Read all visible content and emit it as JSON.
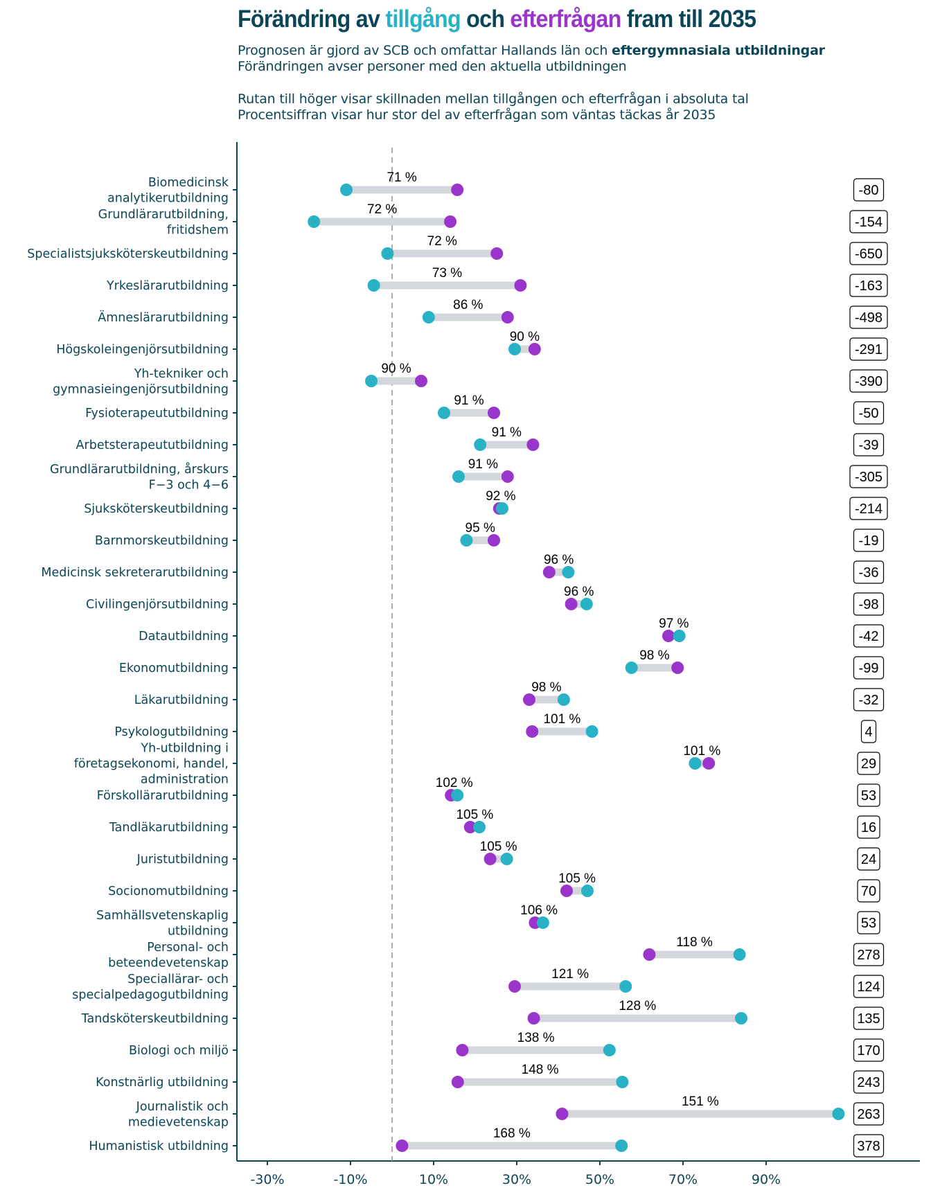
{
  "header": {
    "title_parts": [
      {
        "text": "Förändring av ",
        "role": "plain"
      },
      {
        "text": "tillgång",
        "role": "supply"
      },
      {
        "text": " och ",
        "role": "plain"
      },
      {
        "text": "efterfrågan",
        "role": "demand"
      },
      {
        "text": " fram till 2035",
        "role": "plain"
      }
    ],
    "subtitle_line1_plain": "Prognosen är gjord av SCB och omfattar Hallands län och ",
    "subtitle_line1_bold": "eftergymnasiala utbildningar",
    "subtitle_line2": "Förändringen avser personer med den aktuella utbildningen",
    "subtitle_line3": "Rutan till höger visar skillnaden mellan tillgången och efterfrågan i absoluta tal",
    "subtitle_line4": "Procentsiffran visar hur stor del av efterfrågan som väntas täckas år 2035"
  },
  "colors": {
    "title": "#0b4558",
    "supply": "#29b2c6",
    "demand": "#9a35cc",
    "segment": "#d4d7db",
    "axis": "#0b4558",
    "reference_line": "#999999"
  },
  "chart_data": {
    "type": "dumbbell",
    "title": "Förändring av tillgång och efterfrågan fram till 2035",
    "xlabel": "",
    "ylabel": "",
    "xlim": [
      -34,
      128
    ],
    "x_ticks": [
      -30,
      -10,
      10,
      30,
      50,
      70,
      90
    ],
    "x_tick_labels": [
      "-30%",
      "-10%",
      "10%",
      "30%",
      "50%",
      "70%",
      "90%"
    ],
    "reference_line": 0,
    "grid": false,
    "series_names": {
      "supply": "tillgång",
      "demand": "efterfrågan"
    },
    "rows": [
      {
        "label": [
          "Biomedicinsk",
          "analytikerutbildning"
        ],
        "supply": -11,
        "demand": 15.7,
        "coverage": "71 %",
        "diff": "-80"
      },
      {
        "label": [
          "Grundlärarutbildning,",
          "fritidshem"
        ],
        "supply": -18.8,
        "demand": 14,
        "coverage": "72 %",
        "diff": "-154"
      },
      {
        "label": [
          "Specialistsjuksköterskeutbildning"
        ],
        "supply": -1.1,
        "demand": 25.2,
        "coverage": "72 %",
        "diff": "-650"
      },
      {
        "label": [
          "Yrkeslärarutbildning"
        ],
        "supply": -4.4,
        "demand": 30.9,
        "coverage": "73 %",
        "diff": "-163"
      },
      {
        "label": [
          "Ämneslärarutbildning"
        ],
        "supply": 8.8,
        "demand": 27.8,
        "coverage": "86 %",
        "diff": "-498"
      },
      {
        "label": [
          "Högskoleingenjörsutbildning"
        ],
        "supply": 29.5,
        "demand": 34.3,
        "coverage": "90 %",
        "diff": "-291"
      },
      {
        "label": [
          "Yh-tekniker och",
          "gymnasieingenjörsutbildning"
        ],
        "supply": -5,
        "demand": 7,
        "coverage": "90 %",
        "diff": "-390"
      },
      {
        "label": [
          "Fysioterapeututbildning"
        ],
        "supply": 12.5,
        "demand": 24.5,
        "coverage": "91 %",
        "diff": "-50"
      },
      {
        "label": [
          "Arbetsterapeututbildning"
        ],
        "supply": 21.2,
        "demand": 33.9,
        "coverage": "91 %",
        "diff": "-39"
      },
      {
        "label": [
          "Grundlärarutbildning, årskurs",
          "F−3 och 4−6"
        ],
        "supply": 16,
        "demand": 27.8,
        "coverage": "91 %",
        "diff": "-305"
      },
      {
        "label": [
          "Sjuksköterskeutbildning"
        ],
        "supply": 26.5,
        "demand": 25.8,
        "coverage": "92 %",
        "diff": "-214"
      },
      {
        "label": [
          "Barnmorskeutbildning"
        ],
        "supply": 17.9,
        "demand": 24.5,
        "coverage": "95 %",
        "diff": "-19"
      },
      {
        "label": [
          "Medicinsk sekreterarutbildning"
        ],
        "supply": 42.4,
        "demand": 37.8,
        "coverage": "96 %",
        "diff": "-36"
      },
      {
        "label": [
          "Civilingenjörsutbildning"
        ],
        "supply": 46.8,
        "demand": 43.1,
        "coverage": "96 %",
        "diff": "-98"
      },
      {
        "label": [
          "Datautbildning"
        ],
        "supply": 69.1,
        "demand": 66.5,
        "coverage": "97 %",
        "diff": "-42"
      },
      {
        "label": [
          "Ekonomutbildning"
        ],
        "supply": 57.6,
        "demand": 68.7,
        "coverage": "98 %",
        "diff": "-99"
      },
      {
        "label": [
          "Läkarutbildning"
        ],
        "supply": 41.3,
        "demand": 33,
        "coverage": "98 %",
        "diff": "-32"
      },
      {
        "label": [
          "Psykologutbildning"
        ],
        "supply": 48.1,
        "demand": 33.7,
        "coverage": "101 %",
        "diff": "4"
      },
      {
        "label": [
          "Yh-utbildning i",
          "företagsekonomi, handel,",
          "administration"
        ],
        "supply": 72.9,
        "demand": 76.2,
        "coverage": "101 %",
        "diff": "29"
      },
      {
        "label": [
          "Förskollärarutbildning"
        ],
        "supply": 15.7,
        "demand": 14.2,
        "coverage": "102 %",
        "diff": "53"
      },
      {
        "label": [
          "Tandläkarutbildning"
        ],
        "supply": 21,
        "demand": 18.8,
        "coverage": "105 %",
        "diff": "16"
      },
      {
        "label": [
          "Juristutbildning"
        ],
        "supply": 27.6,
        "demand": 23.6,
        "coverage": "105 %",
        "diff": "24"
      },
      {
        "label": [
          "Socionomutbildning"
        ],
        "supply": 47,
        "demand": 42,
        "coverage": "105 %",
        "diff": "70"
      },
      {
        "label": [
          "Samhällsvetenskaplig",
          "utbildning"
        ],
        "supply": 36.3,
        "demand": 34.4,
        "coverage": "106 %",
        "diff": "53"
      },
      {
        "label": [
          "Personal- och",
          "beteendevetenskap"
        ],
        "supply": 83.6,
        "demand": 61.9,
        "coverage": "118 %",
        "diff": "278"
      },
      {
        "label": [
          "Speciallärar- och",
          "specialpedagogutbildning"
        ],
        "supply": 56.2,
        "demand": 29.5,
        "coverage": "121 %",
        "diff": "124"
      },
      {
        "label": [
          "Tandsköterskeutbildning"
        ],
        "supply": 84,
        "demand": 34.1,
        "coverage": "128 %",
        "diff": "135"
      },
      {
        "label": [
          "Biologi och miljö"
        ],
        "supply": 52.3,
        "demand": 16.9,
        "coverage": "138 %",
        "diff": "170"
      },
      {
        "label": [
          "Konstnärlig utbildning"
        ],
        "supply": 55.4,
        "demand": 15.8,
        "coverage": "148 %",
        "diff": "243"
      },
      {
        "label": [
          "Journalistik och",
          "medievetenskap"
        ],
        "supply": 107.4,
        "demand": 40.9,
        "coverage": "151 %",
        "diff": "263"
      },
      {
        "label": [
          "Humanistisk utbildning"
        ],
        "supply": 55.2,
        "demand": 2.4,
        "coverage": "168 %",
        "diff": "378"
      }
    ]
  }
}
